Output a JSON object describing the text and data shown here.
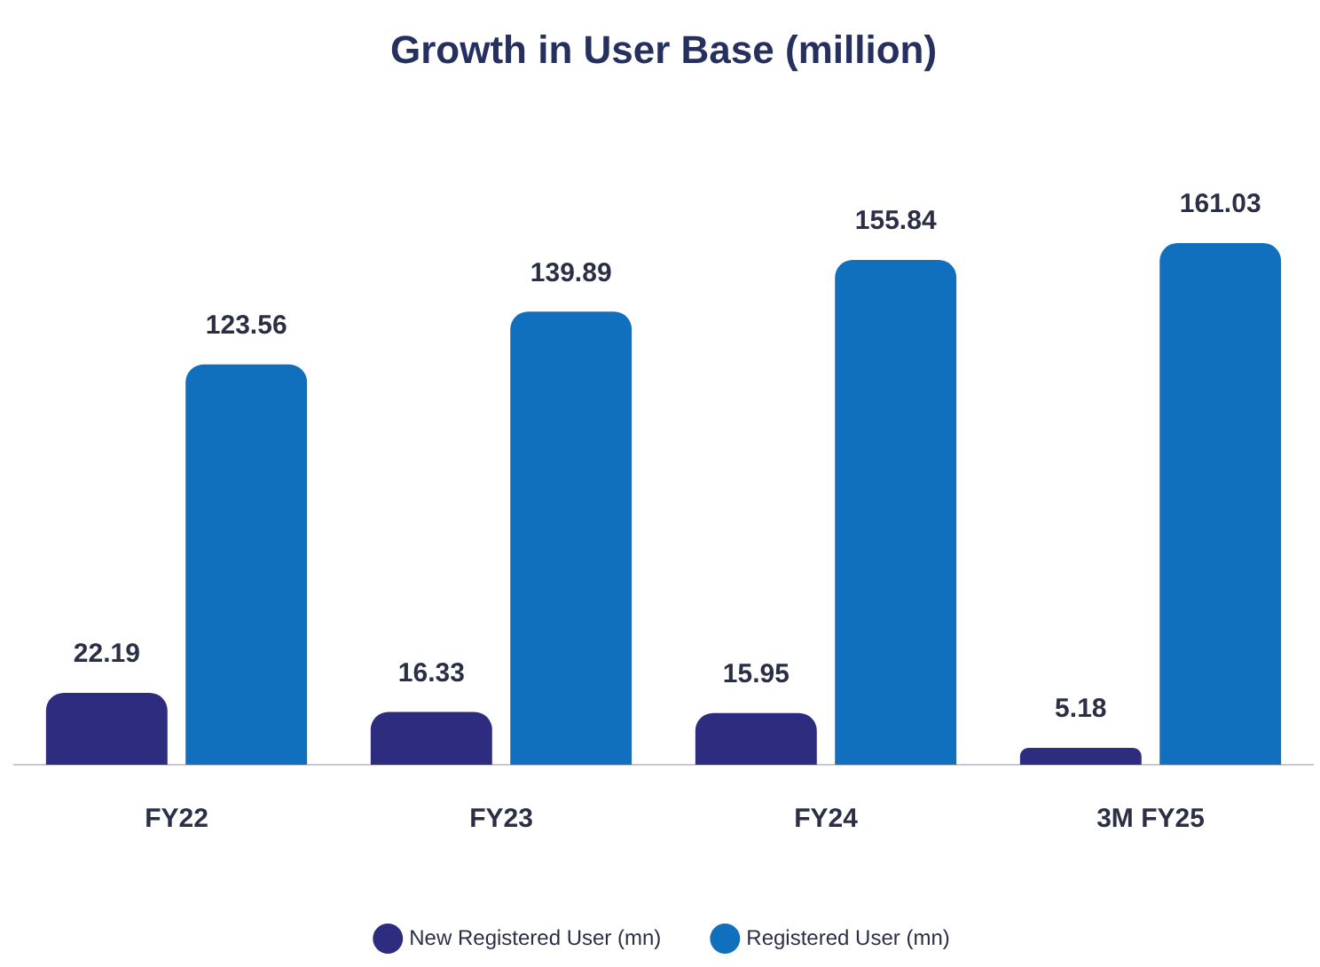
{
  "chart_data": {
    "type": "bar",
    "title": "Growth in User Base (million)",
    "categories": [
      "FY22",
      "FY23",
      "FY24",
      "3M FY25"
    ],
    "series": [
      {
        "name": "New Registered User (mn)",
        "color": "#2e2c7e",
        "values": [
          22.19,
          16.33,
          15.95,
          5.18
        ]
      },
      {
        "name": "Registered User (mn)",
        "color": "#1170bd",
        "values": [
          123.56,
          139.89,
          155.84,
          161.03
        ]
      }
    ],
    "tick_labels": "x",
    "data_labels": true,
    "grid": false,
    "legend": "bottom"
  }
}
